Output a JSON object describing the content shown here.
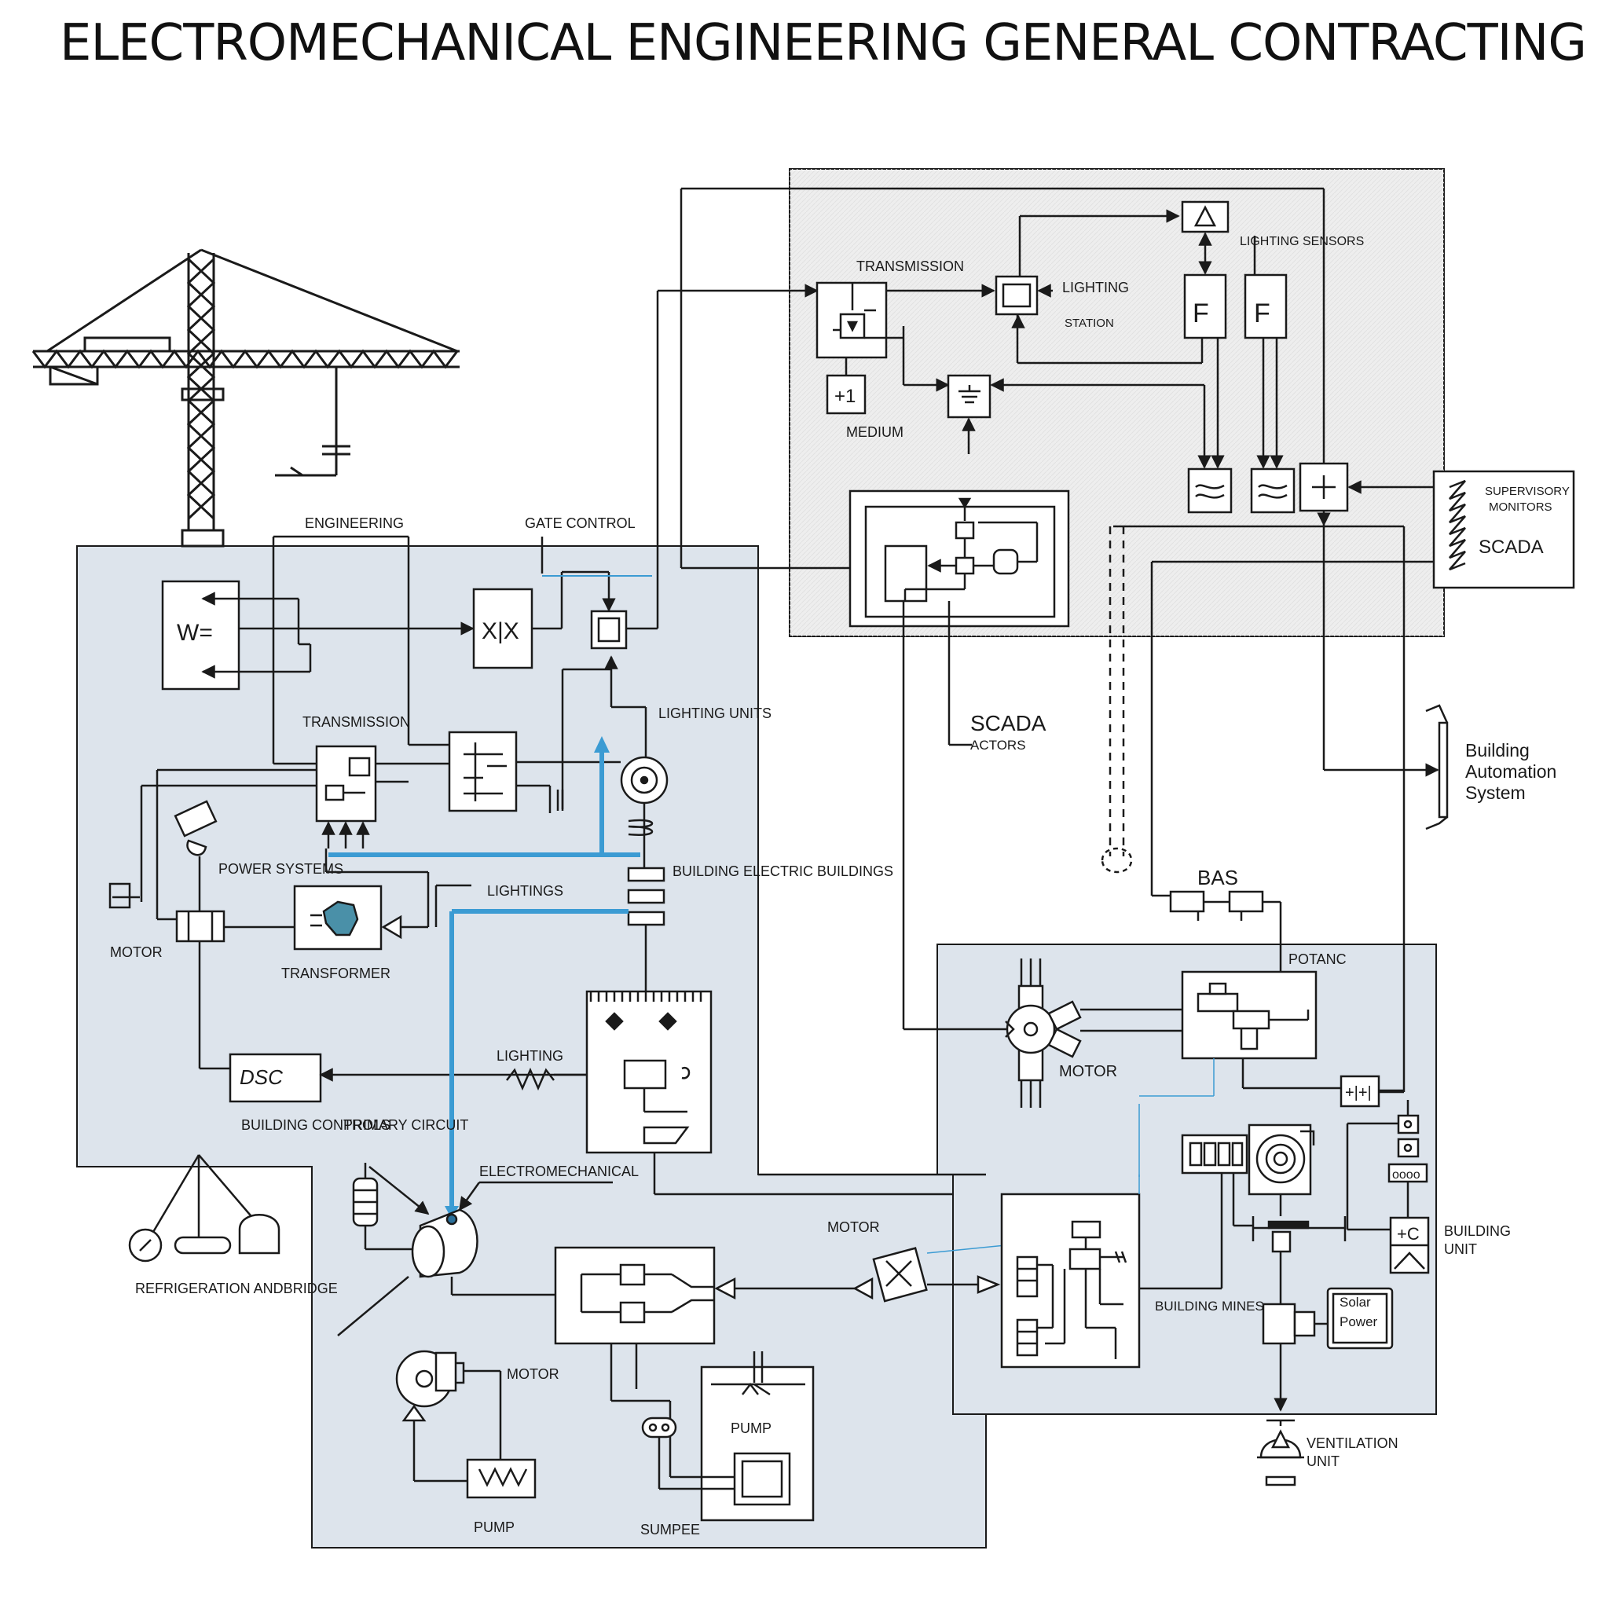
{
  "title": "ELECTROMECHANICAL ENGINEERING GENERAL CONTRACTING",
  "colors": {
    "panel_blue": "#dde4ec",
    "panel_gray": "#eeeeee",
    "line": "#1a1a1a",
    "accent_blue": "#3b9bd3",
    "background": "#ffffff"
  },
  "icons": [
    "tower-crane-icon",
    "motor-icon",
    "pump-icon",
    "transformer-icon",
    "switch-box-icon",
    "relay-icon",
    "valve-icon",
    "sensor-icon",
    "bulb-icon"
  ],
  "labels": {
    "engineering": "ENGINEERING",
    "gate_control": "GATE CONTROL",
    "transmission_left": "TRANSMISSION",
    "lighting_units": "LIGHTING UNITS",
    "power_systems": "POWER SYSTEMS",
    "lightings": "LIGHTINGS",
    "motor_left": "MOTOR",
    "transformer": "TRANSFORMER",
    "building_electric": "BUILDING ELECTRIC BUILDINGS",
    "lighting_mid": "LIGHTING",
    "building_controls": "BUILDING CONTROLS",
    "primary_circuit": "PRIMARY CIRCUIT",
    "electromechanical": "ELECTROMECHANICAL",
    "refrigeration": "REFRIGERATION ANDBRIDGE",
    "motor_bottom": "MOTOR",
    "pump_low": "PUMP",
    "pump_box": "PUMP",
    "sumpee": "SUMPEE",
    "motor_mid": "MOTOR",
    "transmission_top": "TRANSMISSION",
    "lighting_top": "LIGHTING",
    "lighting_top_sub": "STATION",
    "lighting_sensors": "LIGHTING SENSORS",
    "medium": "MEDIUM",
    "supervisory_l1": "SUPERVISORY",
    "supervisory_l2": "MONITORS",
    "scada_box": "SCADA",
    "scada_mid": "SCADA",
    "scada_mid_sub": "ACTORS",
    "bas": "BAS",
    "bas_full_l1": "Building",
    "bas_full_l2": "Automation",
    "bas_full_l3": "System",
    "potential": "POTANC",
    "motor_right": "MOTOR",
    "building_units_l1": "BUILDING",
    "building_units_l2": "UNIT",
    "building_mines": "BUILDING MINES",
    "solar_l1": "Solar",
    "solar_l2": "Power",
    "ventilation_l1": "VENTILATION",
    "ventilation_l2": "UNIT"
  }
}
